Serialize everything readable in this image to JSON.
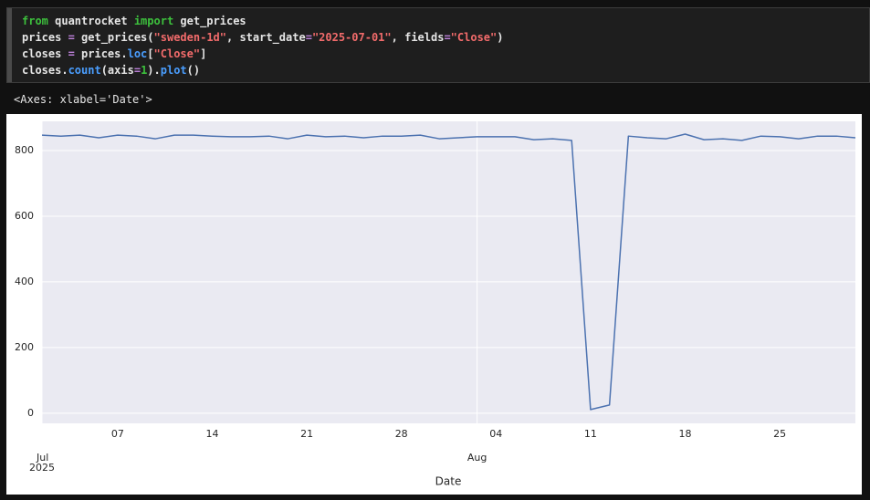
{
  "code_cell": {
    "lines": [
      [
        {
          "text": "from",
          "color": "#3dc13d"
        },
        {
          "text": " quantrocket ",
          "color": "#e6e6e6"
        },
        {
          "text": "import",
          "color": "#3dc13d"
        },
        {
          "text": " get_prices",
          "color": "#e6e6e6"
        }
      ],
      [
        {
          "text": "prices ",
          "color": "#e6e6e6"
        },
        {
          "text": "=",
          "color": "#b97fd6"
        },
        {
          "text": " get_prices(",
          "color": "#e6e6e6"
        },
        {
          "text": "\"sweden-1d\"",
          "color": "#f26b6b"
        },
        {
          "text": ", start_date",
          "color": "#e6e6e6"
        },
        {
          "text": "=",
          "color": "#b97fd6"
        },
        {
          "text": "\"2025-07-01\"",
          "color": "#f26b6b"
        },
        {
          "text": ", fields",
          "color": "#e6e6e6"
        },
        {
          "text": "=",
          "color": "#b97fd6"
        },
        {
          "text": "\"Close\"",
          "color": "#f26b6b"
        },
        {
          "text": ")",
          "color": "#e6e6e6"
        }
      ],
      [
        {
          "text": "closes ",
          "color": "#e6e6e6"
        },
        {
          "text": "=",
          "color": "#b97fd6"
        },
        {
          "text": " prices.",
          "color": "#e6e6e6"
        },
        {
          "text": "loc",
          "color": "#4a9eff"
        },
        {
          "text": "[",
          "color": "#e6e6e6"
        },
        {
          "text": "\"Close\"",
          "color": "#f26b6b"
        },
        {
          "text": "]",
          "color": "#e6e6e6"
        }
      ],
      [
        {
          "text": "closes.",
          "color": "#e6e6e6"
        },
        {
          "text": "count",
          "color": "#4a9eff"
        },
        {
          "text": "(axis",
          "color": "#e6e6e6"
        },
        {
          "text": "=",
          "color": "#b97fd6"
        },
        {
          "text": "1",
          "color": "#3dc13d"
        },
        {
          "text": ").",
          "color": "#e6e6e6"
        },
        {
          "text": "plot",
          "color": "#4a9eff"
        },
        {
          "text": "()",
          "color": "#e6e6e6"
        }
      ]
    ]
  },
  "output_text": "<Axes: xlabel='Date'>",
  "chart_data": {
    "type": "line",
    "xlabel": "Date",
    "color": "#4c72b0",
    "grid": true,
    "categories": [
      "2025-07-01",
      "2025-07-02",
      "2025-07-03",
      "2025-07-04",
      "2025-07-07",
      "2025-07-08",
      "2025-07-09",
      "2025-07-10",
      "2025-07-11",
      "2025-07-14",
      "2025-07-15",
      "2025-07-16",
      "2025-07-17",
      "2025-07-18",
      "2025-07-21",
      "2025-07-22",
      "2025-07-23",
      "2025-07-24",
      "2025-07-25",
      "2025-07-28",
      "2025-07-29",
      "2025-07-30",
      "2025-07-31",
      "2025-08-01",
      "2025-08-04",
      "2025-08-05",
      "2025-08-06",
      "2025-08-07",
      "2025-08-08",
      "2025-08-11",
      "2025-08-12",
      "2025-08-13",
      "2025-08-14",
      "2025-08-15",
      "2025-08-18",
      "2025-08-19",
      "2025-08-20",
      "2025-08-21",
      "2025-08-22",
      "2025-08-25",
      "2025-08-26",
      "2025-08-27",
      "2025-08-28",
      "2025-08-29"
    ],
    "values": [
      847,
      844,
      847,
      839,
      847,
      844,
      836,
      847,
      847,
      844,
      842,
      842,
      844,
      836,
      847,
      842,
      844,
      839,
      844,
      844,
      847,
      836,
      839,
      842,
      842,
      842,
      833,
      836,
      831,
      11,
      25,
      844,
      839,
      836,
      850,
      833,
      836,
      831,
      844,
      842,
      836,
      844,
      844,
      839
    ],
    "ylim": [
      -31,
      889
    ],
    "yticks": [
      0,
      200,
      400,
      600,
      800
    ],
    "xticks": [
      {
        "value": "2025-07-01",
        "label": "Jul"
      },
      {
        "value": "2025-08-01",
        "label": "Aug"
      }
    ],
    "x_year_label": "2025",
    "minor_xticks": [
      {
        "value": "2025-07-07",
        "label": "07"
      },
      {
        "value": "2025-07-14",
        "label": "14"
      },
      {
        "value": "2025-07-21",
        "label": "21"
      },
      {
        "value": "2025-07-28",
        "label": "28"
      },
      {
        "value": "2025-08-04",
        "label": "04"
      },
      {
        "value": "2025-08-11",
        "label": "11"
      },
      {
        "value": "2025-08-18",
        "label": "18"
      },
      {
        "value": "2025-08-25",
        "label": "25"
      }
    ]
  }
}
